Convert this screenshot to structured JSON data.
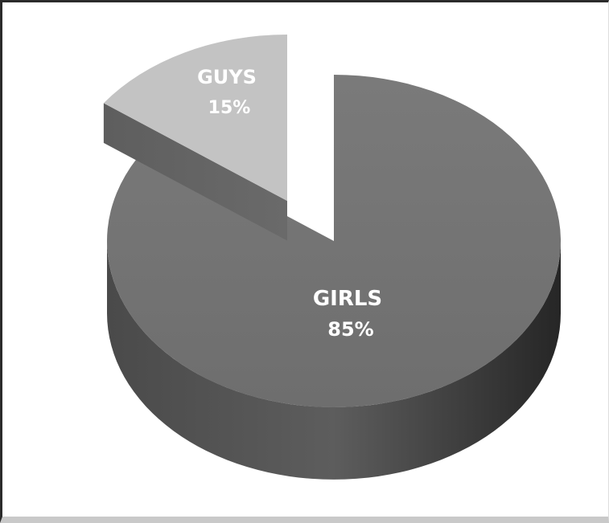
{
  "chart_data": {
    "type": "pie",
    "style": "3d-exploded",
    "categories": [
      "GIRLS",
      "GUYS"
    ],
    "values": [
      85,
      15
    ],
    "value_labels": [
      "85%",
      "15%"
    ],
    "colors": {
      "GIRLS": "#747474",
      "GUYS": "#c3c3c3"
    },
    "legend": "none",
    "grid": false
  }
}
